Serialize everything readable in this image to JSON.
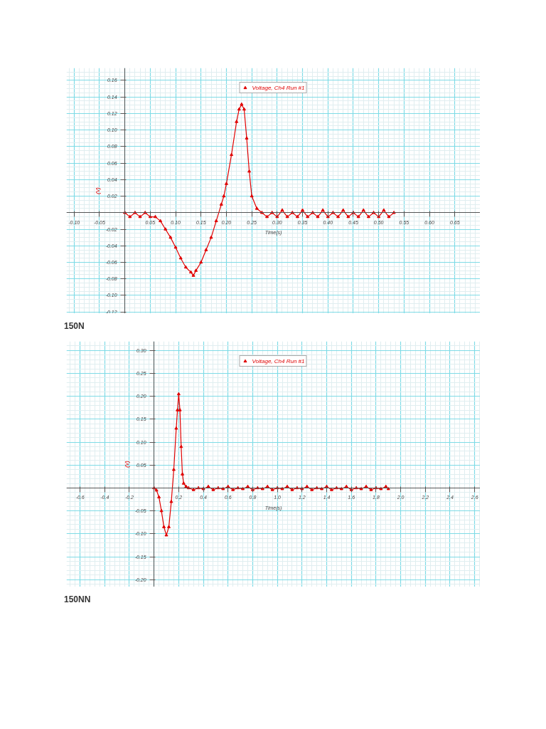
{
  "chart_data": [
    {
      "type": "line",
      "xlabel": "Time(s)",
      "ylabel": "(V)",
      "annotations": [
        "150N"
      ],
      "grid": true,
      "legend": "top",
      "marker": "triangle",
      "line_style": "solid",
      "xlim": [
        -0.115,
        0.7
      ],
      "ylim": [
        -0.122,
        0.175
      ],
      "xticks": [
        {
          "value": -0.1,
          "label": "-0.10"
        },
        -0.05,
        {
          "value": 0,
          "label": null
        },
        0.05,
        {
          "value": 0.1,
          "label": "0.10"
        },
        0.15,
        {
          "value": 0.2,
          "label": "0.20"
        },
        0.25,
        {
          "value": 0.3,
          "label": "0.30"
        },
        0.35,
        {
          "value": 0.4,
          "label": "0.40"
        },
        0.45,
        {
          "value": 0.5,
          "label": "0.50"
        },
        0.55,
        {
          "value": 0.6,
          "label": "0.60"
        },
        0.65
      ],
      "yticks": [
        {
          "value": -0.12,
          "label": "-0.12"
        },
        {
          "value": -0.1,
          "label": "-0.10"
        },
        -0.08,
        -0.06,
        -0.04,
        -0.02,
        {
          "value": 0,
          "label": null
        },
        0.02,
        0.04,
        0.06,
        0.08,
        {
          "value": 0.1,
          "label": "0.10"
        },
        0.12,
        0.14,
        0.16
      ],
      "series": [
        {
          "name": "Voltage, Ch4 Run #1",
          "color": "#e00000",
          "x": [
            0,
            0.01,
            0.02,
            0.03,
            0.04,
            0.05,
            0.06,
            0.07,
            0.08,
            0.09,
            0.1,
            0.11,
            0.12,
            0.13,
            0.135,
            0.14,
            0.15,
            0.16,
            0.17,
            0.18,
            0.19,
            0.195,
            0.2,
            0.21,
            0.22,
            0.225,
            0.23,
            0.235,
            0.24,
            0.245,
            0.25,
            0.26,
            0.27,
            0.28,
            0.29,
            0.3,
            0.31,
            0.32,
            0.33,
            0.34,
            0.35,
            0.36,
            0.37,
            0.38,
            0.39,
            0.4,
            0.41,
            0.42,
            0.43,
            0.44,
            0.45,
            0.46,
            0.47,
            0.48,
            0.49,
            0.5,
            0.51,
            0.52,
            0.53
          ],
          "values": [
            0,
            -0.005,
            0,
            -0.005,
            0,
            -0.005,
            -0.005,
            -0.01,
            -0.02,
            -0.03,
            -0.042,
            -0.055,
            -0.066,
            -0.072,
            -0.076,
            -0.07,
            -0.06,
            -0.045,
            -0.03,
            -0.01,
            0.01,
            0.02,
            0.035,
            0.07,
            0.11,
            0.125,
            0.131,
            0.125,
            0.09,
            0.05,
            0.02,
            0.005,
            0,
            -0.005,
            0,
            -0.005,
            0.003,
            -0.005,
            0,
            -0.005,
            0.003,
            -0.005,
            0,
            -0.005,
            0.003,
            -0.005,
            0,
            -0.005,
            0.003,
            -0.005,
            0,
            -0.005,
            0.003,
            -0.005,
            0,
            -0.005,
            0.003,
            -0.005,
            0
          ]
        }
      ]
    },
    {
      "type": "line",
      "xlabel": "Time(s)",
      "ylabel": "(V)",
      "annotations": [
        "150NN"
      ],
      "grid": true,
      "legend": "top",
      "marker": "triangle",
      "line_style": "solid",
      "xlim": [
        -0.71,
        2.645
      ],
      "ylim": [
        -0.216,
        0.32
      ],
      "xticks": [
        -0.6,
        -0.4,
        -0.2,
        {
          "value": 0,
          "label": null
        },
        0.2,
        0.4,
        0.6,
        0.8,
        {
          "value": 1.0,
          "label": "1.0"
        },
        1.2,
        1.4,
        1.6,
        1.8,
        {
          "value": 2.0,
          "label": "2.0"
        },
        2.2,
        2.4,
        2.6
      ],
      "yticks": [
        {
          "value": -0.2,
          "label": "-0.20"
        },
        -0.15,
        {
          "value": -0.1,
          "label": "-0.10"
        },
        -0.05,
        {
          "value": 0,
          "label": null
        },
        0.05,
        {
          "value": 0.1,
          "label": "0.10"
        },
        0.15,
        {
          "value": 0.2,
          "label": "0.20"
        },
        0.25,
        {
          "value": 0.3,
          "label": "0.30"
        }
      ],
      "series": [
        {
          "name": "Voltage, Ch4 Run #1",
          "color": "#e00000",
          "x": [
            0,
            0.02,
            0.04,
            0.06,
            0.08,
            0.1,
            0.12,
            0.14,
            0.16,
            0.18,
            0.19,
            0.2,
            0.21,
            0.22,
            0.23,
            0.24,
            0.26,
            0.28,
            0.32,
            0.36,
            0.4,
            0.44,
            0.48,
            0.52,
            0.56,
            0.6,
            0.64,
            0.68,
            0.72,
            0.76,
            0.8,
            0.84,
            0.88,
            0.92,
            0.96,
            1.0,
            1.04,
            1.08,
            1.12,
            1.16,
            1.2,
            1.24,
            1.28,
            1.32,
            1.36,
            1.4,
            1.44,
            1.48,
            1.52,
            1.56,
            1.6,
            1.64,
            1.68,
            1.72,
            1.76,
            1.8,
            1.84,
            1.88,
            1.9
          ],
          "values": [
            0,
            -0.005,
            -0.02,
            -0.05,
            -0.085,
            -0.103,
            -0.085,
            -0.03,
            0.04,
            0.13,
            0.17,
            0.205,
            0.17,
            0.09,
            0.03,
            0.01,
            0.003,
            0,
            -0.004,
            0,
            -0.002,
            0.003,
            -0.004,
            0,
            -0.002,
            0.003,
            -0.004,
            0,
            -0.002,
            0.003,
            -0.004,
            0,
            -0.002,
            0.003,
            -0.004,
            0,
            -0.002,
            0.003,
            -0.004,
            0,
            -0.002,
            0.003,
            -0.004,
            0,
            -0.002,
            0.003,
            -0.004,
            0,
            -0.002,
            0.003,
            -0.004,
            0,
            -0.002,
            0.003,
            -0.004,
            0,
            -0.002,
            0.003,
            -0.002
          ]
        }
      ]
    }
  ]
}
